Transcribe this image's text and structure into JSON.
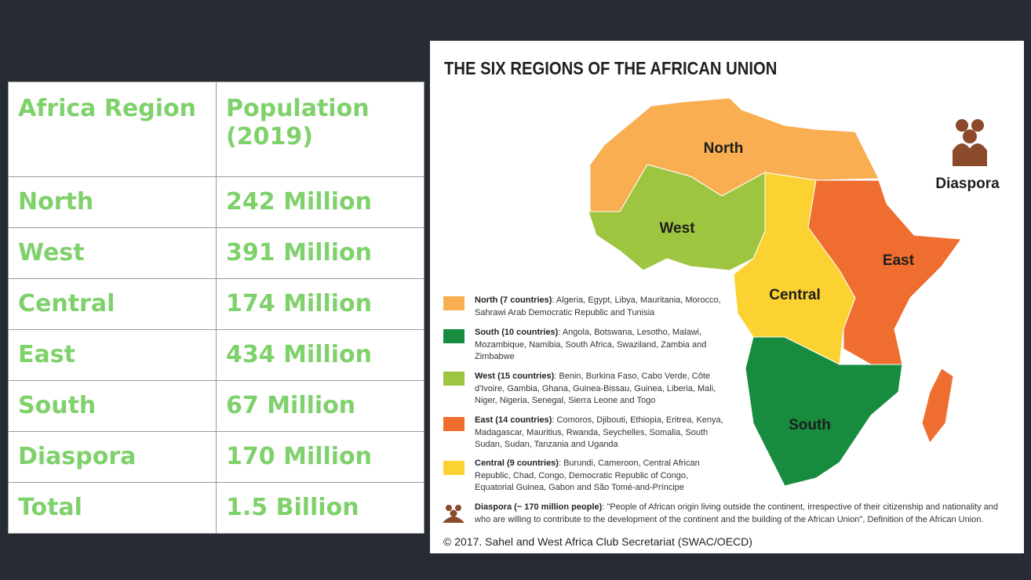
{
  "table": {
    "header": [
      "Africa Region",
      "Population (2019)"
    ],
    "rows": [
      [
        "North",
        "242 Million"
      ],
      [
        "West",
        "391 Million"
      ],
      [
        "Central",
        "174 Million"
      ],
      [
        "East",
        "434 Million"
      ],
      [
        "South",
        "67 Million"
      ],
      [
        "Diaspora",
        "170 Million"
      ],
      [
        "Total",
        "1.5 Billion"
      ]
    ]
  },
  "map": {
    "title": "THE SIX REGIONS OF THE AFRICAN UNION",
    "regions": {
      "north": "North",
      "west": "West",
      "central": "Central",
      "east": "East",
      "south": "South",
      "diaspora": "Diaspora"
    },
    "legend": [
      {
        "label": "North (7 countries)",
        "text": ": Algeria, Egypt, Libya, Mauritania, Morocco, Sahrawi Arab Democratic Republic and Tunisia"
      },
      {
        "label": "South (10 countries)",
        "text": ": Angola, Botswana, Lesotho, Malawi, Mozambique, Namibia, South Africa, Swaziland, Zambia and Zimbabwe"
      },
      {
        "label": "West (15 countries)",
        "text": ": Benin, Burkina Faso, Cabo Verde, Côte d'Ivoire, Gambia, Ghana, Guinea-Bissau, Guinea, Liberia, Mali, Niger, Nigeria, Senegal, Sierra Leone and Togo"
      },
      {
        "label": "East (14 countries)",
        "text": ": Comoros, Djibouti, Ethiopia, Eritrea, Kenya, Madagascar, Mauritius, Rwanda, Seychelles, Somalia, South Sudan, Sudan, Tanzania and Uganda"
      },
      {
        "label": "Central (9 countries)",
        "text": ": Burundi, Cameroon, Central African Republic, Chad, Congo, Democratic Republic of Congo, Equatorial Guinea, Gabon and São Tomé-and-Príncipe"
      }
    ],
    "diaspora_legend": {
      "label": "Diaspora (~ 170 million people)",
      "text": ":  \"People of African origin living outside the continent, irrespective of their citizenship and nationality and who are willing to contribute to the development of the continent and the building of the African Union\", Definition of the African Union."
    },
    "copyright": "© 2017. Sahel and West Africa Club Secretariat (SWAC/OECD)"
  }
}
